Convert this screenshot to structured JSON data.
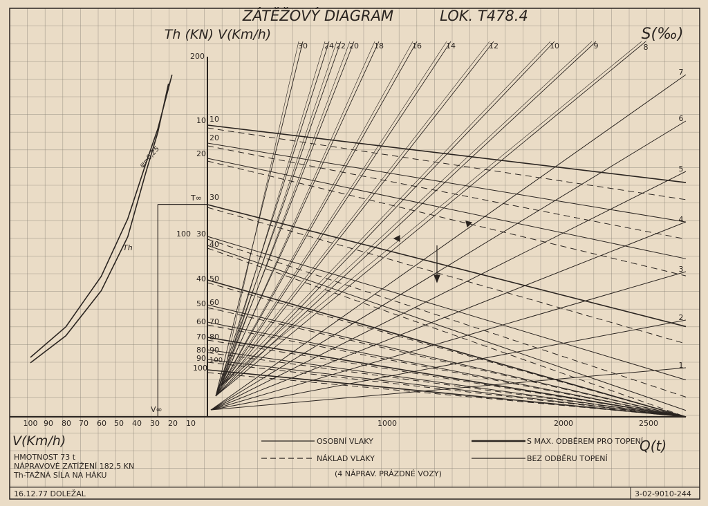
{
  "title": "ZÁTĚŽOVÝ DIAGRAM",
  "locomotive": "LOK. T478.4",
  "left_axis_title": "Th (KN) V(Km/h)",
  "right_axis_title": "S(‰)",
  "bottom_left_axis_title": "V(Km/h)",
  "bottom_right_axis_title": "Q(t)",
  "info_lines": [
    "HMOTNOST 73 t",
    "NÁPRAVOVÉ ZATÍŽENÍ 182,5 KN",
    "Th-TAŽNÁ SÍLA NA HÁKU"
  ],
  "date_author": "16.12.77  DOLEŽAL",
  "doc_number": "3-02-9010-244",
  "legend": {
    "left": [
      {
        "label": "OSOBNÍ VLAKY",
        "style": "solid"
      },
      {
        "label": "NÁKLAD VLAKY",
        "style": "dashed"
      },
      {
        "label": "(4 NÁPRAV. PRÁZDNÉ VOZY)",
        "style": "none"
      }
    ],
    "right": [
      {
        "label": "S MAX. ODBĚREM PRO TOPENÍ",
        "style": "solid-thick"
      },
      {
        "label": "BEZ ODBĚRU TOPENÍ",
        "style": "solid"
      }
    ]
  },
  "colors": {
    "paper": "#eadcc6",
    "grid": "#8b8478",
    "ink": "#2a2420"
  },
  "chart_data": {
    "type": "line",
    "left_panel": {
      "x_axis_label": "V(Km/h)",
      "x_ticks": [
        "100",
        "90",
        "80",
        "70",
        "60",
        "50",
        "40",
        "30",
        "20",
        "10"
      ],
      "y_ticks": [
        "200",
        "100"
      ],
      "curve_labels": [
        "Th",
        "ψ=0,25"
      ],
      "markers": [
        "T∞",
        "V∞"
      ],
      "v_continuous": 28,
      "series": [
        {
          "name": "Th",
          "points": [
            [
              100,
              30
            ],
            [
              80,
              45
            ],
            [
              60,
              70
            ],
            [
              45,
              100
            ],
            [
              35,
              135
            ],
            [
              28,
              158
            ],
            [
              22,
              185
            ]
          ]
        },
        {
          "name": "ψ=0,25",
          "points": [
            [
              100,
              33
            ],
            [
              80,
              50
            ],
            [
              60,
              78
            ],
            [
              45,
              110
            ],
            [
              35,
              140
            ],
            [
              28,
              160
            ],
            [
              20,
              190
            ]
          ]
        }
      ]
    },
    "speed_scale_outer": [
      "10",
      "20",
      "30",
      "40",
      "50",
      "60",
      "70",
      "80",
      "90",
      "100"
    ],
    "speed_scale_inner": [
      "10",
      "20",
      "30",
      "40",
      "50",
      "60",
      "70",
      "80",
      "90",
      "100"
    ],
    "q_axis": {
      "label": "Q(t)",
      "ticks": [
        1000,
        2000,
        2500
      ],
      "range": [
        0,
        2800
      ]
    },
    "gradients_top": [
      "30",
      "24",
      "22",
      "20",
      "18",
      "16",
      "14",
      "12",
      "10",
      "9",
      "8"
    ],
    "gradients_right": [
      "7",
      "6",
      "5",
      "4",
      "3",
      "2",
      "1"
    ],
    "gradient_unit": "‰"
  }
}
